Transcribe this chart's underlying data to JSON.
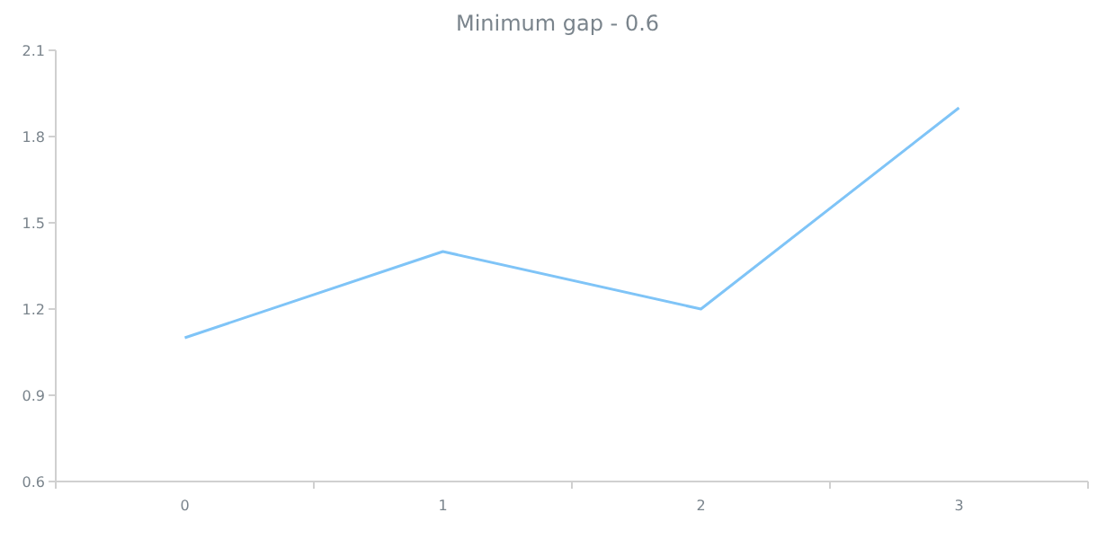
{
  "chart_data": {
    "type": "line",
    "title": "Minimum gap - 0.6",
    "categories": [
      "0",
      "1",
      "2",
      "3"
    ],
    "series": [
      {
        "color": "#7fc4f7",
        "values": [
          1.1,
          1.4,
          1.2,
          1.9
        ]
      }
    ],
    "ylim": [
      0.6,
      2.1
    ],
    "yticks": [
      0.6,
      0.9,
      1.2,
      1.5,
      1.8,
      2.1
    ],
    "grid": false,
    "marker": "none",
    "line_style": "solid"
  }
}
